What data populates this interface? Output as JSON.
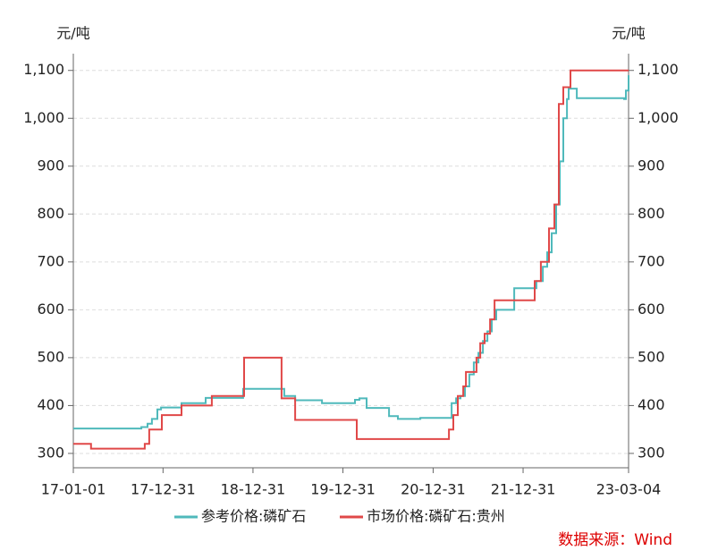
{
  "chart_data": {
    "type": "line",
    "step": "post",
    "y_unit": "元/吨",
    "source": "数据来源：Wind",
    "xlim": [
      "17-01-01",
      "23-03-04"
    ],
    "xticks": [
      "17-01-01",
      "17-12-31",
      "18-12-31",
      "19-12-31",
      "20-12-31",
      "21-12-31",
      "23-03-04"
    ],
    "ylim": [
      270,
      1135
    ],
    "yticks": [
      300,
      400,
      500,
      600,
      700,
      800,
      900,
      {
        "value": 1000,
        "label": "1,000"
      },
      {
        "value": 1100,
        "label": "1,100"
      }
    ],
    "grid": true,
    "series": [
      {
        "name": "参考价格:磷矿石",
        "color": "#4fb9bb",
        "x": [
          "17-01-01",
          "17-10-04",
          "17-10-29",
          "17-11-16",
          "17-12-08",
          "17-12-23",
          "18-03-16",
          "18-06-22",
          "18-11-21",
          "19-05-07",
          "19-06-20",
          "19-10-07",
          "20-02-18",
          "20-03-07",
          "20-04-05",
          "20-07-05",
          "20-08-10",
          "20-11-09",
          "21-03-05",
          "21-03-16",
          "21-04-03",
          "21-04-21",
          "21-05-09",
          "21-05-27",
          "21-06-14",
          "21-07-03",
          "21-07-21",
          "21-08-08",
          "21-08-26",
          "21-09-13",
          "21-11-25",
          "22-02-12",
          "22-02-23",
          "22-03-21",
          "22-04-08",
          "22-04-26",
          "22-05-14",
          "22-05-29",
          "22-06-12",
          "22-06-27",
          "22-07-04",
          "22-08-06",
          "23-02-14",
          "23-02-21",
          "23-03-04"
        ],
        "values": [
          352,
          355,
          362,
          372,
          392,
          396,
          405,
          416,
          435,
          420,
          411,
          405,
          412,
          415,
          395,
          378,
          372,
          374,
          374,
          405,
          415,
          420,
          440,
          465,
          490,
          510,
          535,
          555,
          580,
          600,
          645,
          645,
          660,
          690,
          720,
          760,
          820,
          910,
          1000,
          1040,
          1062,
          1042,
          1040,
          1058,
          1090
        ]
      },
      {
        "name": "市场价格:磷矿石:贵州",
        "color": "#e04848",
        "x": [
          "17-01-01",
          "17-03-14",
          "17-10-18",
          "17-11-05",
          "17-12-26",
          "18-03-16",
          "18-07-17",
          "18-11-25",
          "19-04-26",
          "19-06-20",
          "20-02-25",
          "21-03-05",
          "21-03-23",
          "21-04-10",
          "21-05-02",
          "21-05-13",
          "21-06-25",
          "21-07-10",
          "21-07-28",
          "21-08-19",
          "21-09-06",
          "22-02-16",
          "22-03-13",
          "22-04-15",
          "22-05-07",
          "22-05-25",
          "22-06-12",
          "22-07-11",
          "23-03-04"
        ],
        "values": [
          320,
          310,
          320,
          350,
          380,
          400,
          420,
          500,
          415,
          370,
          330,
          350,
          380,
          420,
          440,
          470,
          500,
          530,
          550,
          580,
          620,
          660,
          700,
          770,
          820,
          1030,
          1065,
          1100,
          1100
        ]
      }
    ]
  }
}
